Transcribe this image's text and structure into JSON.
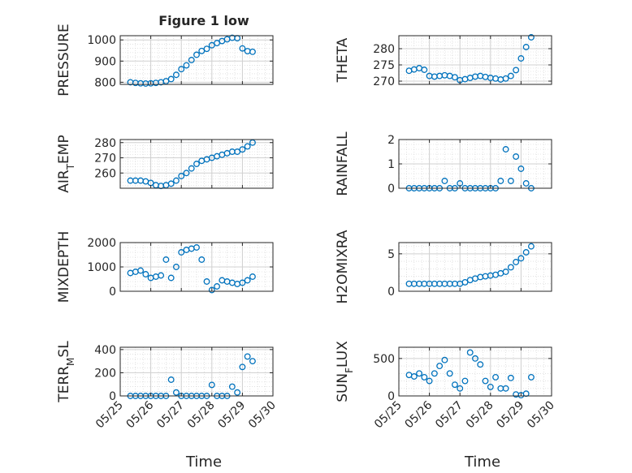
{
  "figure": {
    "title": "Figure 1 low",
    "x_label": "Time",
    "marker_color": "#0072BD",
    "grid_color": "#d0d0d0",
    "axis_color": "#262626"
  },
  "chart_data": [
    {
      "type": "scatter",
      "ylabel": "PRESSURE",
      "xlim": [
        "2023-05-25",
        "2023-05-30"
      ],
      "ylim": [
        790,
        1020
      ],
      "y_ticks": [
        800,
        900,
        1000
      ],
      "x_ticks": [
        "05/25",
        "05/26",
        "05/27",
        "05/28",
        "05/29",
        "05/30"
      ],
      "x_tick_labels_shown": false,
      "x": [
        "05/25 08:00",
        "05/25 12:00",
        "05/25 16:00",
        "05/25 20:00",
        "05/26 00:00",
        "05/26 04:00",
        "05/26 08:00",
        "05/26 12:00",
        "05/26 16:00",
        "05/26 20:00",
        "05/27 00:00",
        "05/27 04:00",
        "05/27 08:00",
        "05/27 12:00",
        "05/27 16:00",
        "05/27 20:00",
        "05/28 00:00",
        "05/28 04:00",
        "05/28 08:00",
        "05/28 12:00",
        "05/28 16:00",
        "05/28 20:00",
        "05/29 00:00",
        "05/29 04:00",
        "05/29 08:00"
      ],
      "y": [
        800,
        797,
        795,
        794,
        795,
        797,
        800,
        805,
        815,
        835,
        862,
        880,
        905,
        930,
        948,
        958,
        975,
        985,
        995,
        1003,
        1010,
        1008,
        960,
        947,
        944
      ]
    },
    {
      "type": "scatter",
      "ylabel": "THETA",
      "xlim": [
        "2023-05-25",
        "2023-05-30"
      ],
      "ylim": [
        269,
        284
      ],
      "y_ticks": [
        270,
        275,
        280
      ],
      "x_ticks": [
        "05/25",
        "05/26",
        "05/27",
        "05/28",
        "05/29",
        "05/30"
      ],
      "x_tick_labels_shown": false,
      "x": [
        "05/25 08:00",
        "05/25 12:00",
        "05/25 16:00",
        "05/25 20:00",
        "05/26 00:00",
        "05/26 04:00",
        "05/26 08:00",
        "05/26 12:00",
        "05/26 16:00",
        "05/26 20:00",
        "05/27 00:00",
        "05/27 04:00",
        "05/27 08:00",
        "05/27 12:00",
        "05/27 16:00",
        "05/27 20:00",
        "05/28 00:00",
        "05/28 04:00",
        "05/28 08:00",
        "05/28 12:00",
        "05/28 16:00",
        "05/28 20:00",
        "05/29 00:00",
        "05/29 04:00",
        "05/29 08:00"
      ],
      "y": [
        273.2,
        273.6,
        274.0,
        273.5,
        271.6,
        271.4,
        271.6,
        271.8,
        271.6,
        271.2,
        270.3,
        270.6,
        271.0,
        271.4,
        271.6,
        271.3,
        271.0,
        270.8,
        270.5,
        270.8,
        271.6,
        273.4,
        277.0,
        280.5,
        283.5
      ]
    },
    {
      "type": "scatter",
      "ylabel": "AIR_TEMP",
      "ylabel_main": "AIR",
      "ylabel_sub": "T",
      "ylabel_tail": "EMP",
      "xlim": [
        "2023-05-25",
        "2023-05-30"
      ],
      "ylim": [
        250,
        282
      ],
      "y_ticks": [
        260,
        270,
        280
      ],
      "x_ticks": [
        "05/25",
        "05/26",
        "05/27",
        "05/28",
        "05/29",
        "05/30"
      ],
      "x_tick_labels_shown": false,
      "x": [
        "05/25 08:00",
        "05/25 12:00",
        "05/25 16:00",
        "05/25 20:00",
        "05/26 00:00",
        "05/26 04:00",
        "05/26 08:00",
        "05/26 12:00",
        "05/26 16:00",
        "05/26 20:00",
        "05/27 00:00",
        "05/27 04:00",
        "05/27 08:00",
        "05/27 12:00",
        "05/27 16:00",
        "05/27 20:00",
        "05/28 00:00",
        "05/28 04:00",
        "05/28 08:00",
        "05/28 12:00",
        "05/28 16:00",
        "05/28 20:00",
        "05/29 00:00",
        "05/29 04:00",
        "05/29 08:00"
      ],
      "y": [
        255,
        255,
        255,
        254.5,
        253.5,
        252,
        251.5,
        252,
        253,
        255,
        258,
        260,
        263,
        266,
        268,
        269,
        270,
        271,
        272,
        273,
        274,
        274,
        275.5,
        277.5,
        280
      ]
    },
    {
      "type": "scatter",
      "ylabel": "RAINFALL",
      "xlim": [
        "2023-05-25",
        "2023-05-30"
      ],
      "ylim": [
        0,
        2
      ],
      "y_ticks": [
        0,
        1,
        2
      ],
      "x_ticks": [
        "05/25",
        "05/26",
        "05/27",
        "05/28",
        "05/29",
        "05/30"
      ],
      "x_tick_labels_shown": false,
      "x": [
        "05/25 08:00",
        "05/25 12:00",
        "05/25 16:00",
        "05/25 20:00",
        "05/26 00:00",
        "05/26 04:00",
        "05/26 08:00",
        "05/26 12:00",
        "05/26 16:00",
        "05/26 20:00",
        "05/27 00:00",
        "05/27 04:00",
        "05/27 08:00",
        "05/27 12:00",
        "05/27 16:00",
        "05/27 20:00",
        "05/28 00:00",
        "05/28 04:00",
        "05/28 08:00",
        "05/28 12:00",
        "05/28 16:00",
        "05/28 20:00",
        "05/29 00:00",
        "05/29 04:00",
        "05/29 08:00"
      ],
      "y": [
        0,
        0,
        0,
        0,
        0,
        0,
        0,
        0.3,
        0,
        0,
        0.2,
        0,
        0,
        0,
        0,
        0,
        0,
        0,
        0.3,
        1.6,
        0.3,
        1.3,
        0.8,
        0.2,
        0
      ]
    },
    {
      "type": "scatter",
      "ylabel": "MIXDEPTH",
      "xlim": [
        "2023-05-25",
        "2023-05-30"
      ],
      "ylim": [
        0,
        2000
      ],
      "y_ticks": [
        0,
        1000,
        2000
      ],
      "x_ticks": [
        "05/25",
        "05/26",
        "05/27",
        "05/28",
        "05/29",
        "05/30"
      ],
      "x_tick_labels_shown": false,
      "x": [
        "05/25 08:00",
        "05/25 12:00",
        "05/25 16:00",
        "05/25 20:00",
        "05/26 00:00",
        "05/26 04:00",
        "05/26 08:00",
        "05/26 12:00",
        "05/26 16:00",
        "05/26 20:00",
        "05/27 00:00",
        "05/27 04:00",
        "05/27 08:00",
        "05/27 12:00",
        "05/27 16:00",
        "05/27 20:00",
        "05/28 00:00",
        "05/28 04:00",
        "05/28 08:00",
        "05/28 12:00",
        "05/28 16:00",
        "05/28 20:00",
        "05/29 00:00",
        "05/29 04:00",
        "05/29 08:00"
      ],
      "y": [
        750,
        800,
        850,
        700,
        550,
        600,
        650,
        1300,
        550,
        1000,
        1600,
        1700,
        1750,
        1800,
        1300,
        400,
        50,
        200,
        450,
        400,
        350,
        300,
        350,
        450,
        600
      ]
    },
    {
      "type": "scatter",
      "ylabel": "H2OMIXRA",
      "xlim": [
        "2023-05-25",
        "2023-05-30"
      ],
      "ylim": [
        0,
        6.5
      ],
      "y_ticks": [
        0,
        5
      ],
      "x_ticks": [
        "05/25",
        "05/26",
        "05/27",
        "05/28",
        "05/29",
        "05/30"
      ],
      "x_tick_labels_shown": false,
      "x": [
        "05/25 08:00",
        "05/25 12:00",
        "05/25 16:00",
        "05/25 20:00",
        "05/26 00:00",
        "05/26 04:00",
        "05/26 08:00",
        "05/26 12:00",
        "05/26 16:00",
        "05/26 20:00",
        "05/27 00:00",
        "05/27 04:00",
        "05/27 08:00",
        "05/27 12:00",
        "05/27 16:00",
        "05/27 20:00",
        "05/28 00:00",
        "05/28 04:00",
        "05/28 08:00",
        "05/28 12:00",
        "05/28 16:00",
        "05/28 20:00",
        "05/29 00:00",
        "05/29 04:00",
        "05/29 08:00"
      ],
      "y": [
        1,
        1,
        1,
        1,
        1,
        1,
        1,
        1,
        1,
        1,
        1,
        1.2,
        1.5,
        1.7,
        1.9,
        2.0,
        2.1,
        2.2,
        2.4,
        2.6,
        3.2,
        3.9,
        4.4,
        5.2,
        6.0
      ]
    },
    {
      "type": "scatter",
      "ylabel": "TERR_MSL",
      "ylabel_main": "TERR",
      "ylabel_sub": "M",
      "ylabel_tail": "SL",
      "xlim": [
        "2023-05-25",
        "2023-05-30"
      ],
      "ylim": [
        0,
        420
      ],
      "y_ticks": [
        0,
        200,
        400
      ],
      "x_ticks": [
        "05/25",
        "05/26",
        "05/27",
        "05/28",
        "05/29",
        "05/30"
      ],
      "x_tick_labels_shown": true,
      "x": [
        "05/25 08:00",
        "05/25 12:00",
        "05/25 16:00",
        "05/25 20:00",
        "05/26 00:00",
        "05/26 04:00",
        "05/26 08:00",
        "05/26 12:00",
        "05/26 16:00",
        "05/26 20:00",
        "05/27 00:00",
        "05/27 04:00",
        "05/27 08:00",
        "05/27 12:00",
        "05/27 16:00",
        "05/27 20:00",
        "05/28 00:00",
        "05/28 04:00",
        "05/28 08:00",
        "05/28 12:00",
        "05/28 16:00",
        "05/28 20:00",
        "05/29 00:00",
        "05/29 04:00",
        "05/29 08:00"
      ],
      "y": [
        0,
        0,
        0,
        0,
        0,
        0,
        0,
        0,
        140,
        30,
        0,
        0,
        0,
        0,
        0,
        0,
        95,
        0,
        0,
        0,
        80,
        30,
        250,
        340,
        300
      ]
    },
    {
      "type": "scatter",
      "ylabel": "SUN_FLUX",
      "ylabel_main": "SUN",
      "ylabel_sub": "F",
      "ylabel_tail": "LUX",
      "xlim": [
        "2023-05-25",
        "2023-05-30"
      ],
      "ylim": [
        0,
        650
      ],
      "y_ticks": [
        0,
        500
      ],
      "x_ticks": [
        "05/25",
        "05/26",
        "05/27",
        "05/28",
        "05/29",
        "05/30"
      ],
      "x_tick_labels_shown": true,
      "x": [
        "05/25 08:00",
        "05/25 12:00",
        "05/25 16:00",
        "05/25 20:00",
        "05/26 00:00",
        "05/26 04:00",
        "05/26 08:00",
        "05/26 12:00",
        "05/26 16:00",
        "05/26 20:00",
        "05/27 00:00",
        "05/27 04:00",
        "05/27 08:00",
        "05/27 12:00",
        "05/27 16:00",
        "05/27 20:00",
        "05/28 00:00",
        "05/28 04:00",
        "05/28 08:00",
        "05/28 12:00",
        "05/28 16:00",
        "05/28 20:00",
        "05/29 00:00",
        "05/29 04:00",
        "05/29 08:00"
      ],
      "y": [
        280,
        260,
        300,
        250,
        200,
        300,
        400,
        480,
        300,
        150,
        100,
        200,
        580,
        500,
        420,
        200,
        120,
        250,
        100,
        100,
        240,
        20,
        10,
        30,
        250
      ]
    }
  ]
}
